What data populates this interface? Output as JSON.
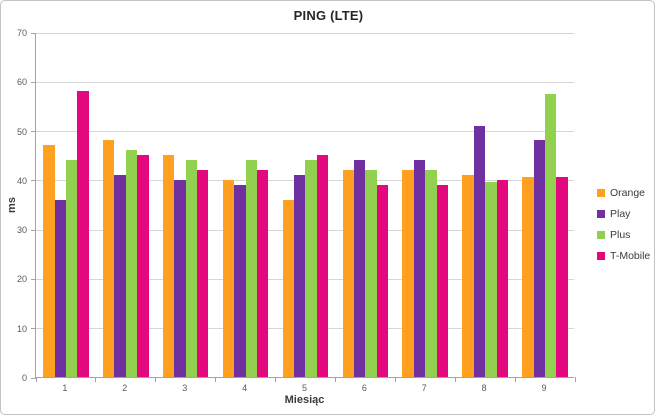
{
  "chart_data": {
    "type": "bar",
    "title": "PING (LTE)",
    "xlabel": "Miesiąc",
    "ylabel": "ms",
    "ylim": [
      0,
      70
    ],
    "yticks": [
      0,
      10,
      20,
      30,
      40,
      50,
      60,
      70
    ],
    "grid": true,
    "legend_position": "right",
    "categories": [
      "1",
      "2",
      "3",
      "4",
      "5",
      "6",
      "7",
      "8",
      "9"
    ],
    "series": [
      {
        "name": "Orange",
        "color": "#FFA021",
        "values": [
          47,
          48,
          45,
          40,
          36,
          42,
          42,
          41,
          40.5
        ]
      },
      {
        "name": "Play",
        "color": "#7030A0",
        "values": [
          36,
          41,
          40,
          39,
          41,
          44,
          44,
          51,
          48
        ]
      },
      {
        "name": "Plus",
        "color": "#92D050",
        "values": [
          44,
          46,
          44,
          44,
          44,
          42,
          42,
          39.5,
          57.5
        ]
      },
      {
        "name": "T-Mobile",
        "color": "#E4087E",
        "values": [
          58,
          45,
          42,
          42,
          45,
          39,
          39,
          40,
          40.5
        ]
      }
    ],
    "colors": {
      "gridline": "#D6D6D6",
      "axis_line": "#A3A3A3",
      "tick_text": "#595959",
      "axis_title_text": "#3B3B3B",
      "title_text": "#262626",
      "chart_border": "#C3C3C3"
    }
  }
}
